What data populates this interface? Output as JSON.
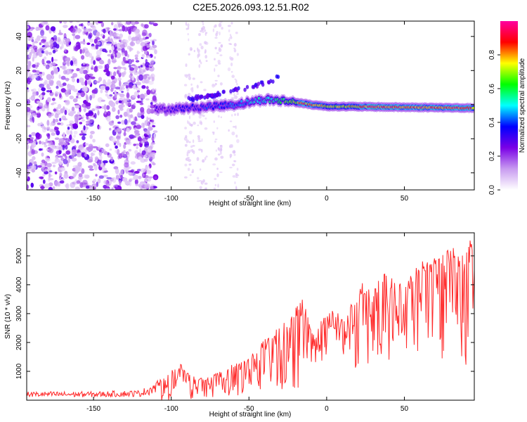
{
  "title": "C2E5.2026.093.12.51.R02",
  "chart_data": [
    {
      "type": "heatmap",
      "xlabel": "Height of straight line (km)",
      "ylabel": "Frequency (Hz)",
      "xlim": [
        -193,
        95
      ],
      "ylim": [
        -50,
        49
      ],
      "xticks": [
        -150,
        -100,
        -50,
        0,
        50
      ],
      "yticks": [
        -40,
        -20,
        0,
        20,
        40
      ],
      "colorbar": {
        "label": "Normalized spectral amplitude",
        "range": [
          0,
          1
        ],
        "ticks": [
          "0.0",
          "0.2",
          "0.4",
          "0.6",
          "0.8"
        ],
        "colors": [
          "#ffffff",
          "#c89bf0",
          "#7a00e6",
          "#0000ff",
          "#00ffff",
          "#00ff00",
          "#ffff00",
          "#ff0000",
          "#ff00a0"
        ]
      },
      "features": [
        {
          "name": "noise region",
          "x_range": [
            -193,
            -110
          ],
          "freq_range": [
            -50,
            49
          ],
          "amplitude": 0.12
        },
        {
          "name": "faint noise bands",
          "x_range": [
            -110,
            -50
          ],
          "freq_range": [
            -50,
            49
          ],
          "amplitude": 0.05
        },
        {
          "name": "carrier line",
          "x_range": [
            -110,
            95
          ],
          "center_freq": [
            {
              "x": -110,
              "f": -3
            },
            {
              "x": -90,
              "f": -2
            },
            {
              "x": -60,
              "f": 0
            },
            {
              "x": -40,
              "f": 3
            },
            {
              "x": -25,
              "f": 2
            },
            {
              "x": -10,
              "f": 0
            },
            {
              "x": 0,
              "f": -1
            },
            {
              "x": 95,
              "f": -2
            }
          ],
          "amplitude_profile": [
            {
              "x": -110,
              "a": 0.3
            },
            {
              "x": -60,
              "a": 0.45
            },
            {
              "x": -30,
              "a": 0.6
            },
            {
              "x": -15,
              "a": 0.9
            },
            {
              "x": 10,
              "a": 0.75
            },
            {
              "x": 30,
              "a": 0.95
            },
            {
              "x": 95,
              "a": 0.9
            }
          ]
        },
        {
          "name": "sideband streak",
          "points": [
            {
              "x": -90,
              "f": 3
            },
            {
              "x": -70,
              "f": 6
            },
            {
              "x": -50,
              "f": 10
            },
            {
              "x": -35,
              "f": 14
            },
            {
              "x": -28,
              "f": 20
            }
          ]
        }
      ]
    },
    {
      "type": "line",
      "xlabel": "Height of straight line (km)",
      "ylabel": "SNR (10 * v/v)",
      "xlim": [
        -193,
        95
      ],
      "ylim": [
        0,
        5800
      ],
      "xticks": [
        -150,
        -100,
        -50,
        0,
        50
      ],
      "yticks": [
        1000,
        2000,
        3000,
        4000,
        5000
      ],
      "series": [
        {
          "name": "SNR",
          "color": "#ff2a2a",
          "envelope": [
            {
              "x": -193,
              "lo": 0,
              "hi": 300
            },
            {
              "x": -150,
              "lo": 0,
              "hi": 300
            },
            {
              "x": -120,
              "lo": 0,
              "hi": 350
            },
            {
              "x": -105,
              "lo": 0,
              "hi": 800
            },
            {
              "x": -95,
              "lo": 0,
              "hi": 1300
            },
            {
              "x": -85,
              "lo": 0,
              "hi": 800
            },
            {
              "x": -75,
              "lo": 0,
              "hi": 800
            },
            {
              "x": -60,
              "lo": 50,
              "hi": 1300
            },
            {
              "x": -50,
              "lo": 100,
              "hi": 1500
            },
            {
              "x": -40,
              "lo": 200,
              "hi": 2100
            },
            {
              "x": -25,
              "lo": 300,
              "hi": 2800
            },
            {
              "x": -15,
              "lo": 400,
              "hi": 3600
            },
            {
              "x": -10,
              "lo": 900,
              "hi": 2400
            },
            {
              "x": 0,
              "lo": 1500,
              "hi": 3000
            },
            {
              "x": 5,
              "lo": 2000,
              "hi": 3200
            },
            {
              "x": 12,
              "lo": 1500,
              "hi": 2700
            },
            {
              "x": 20,
              "lo": 1000,
              "hi": 4000
            },
            {
              "x": 30,
              "lo": 1200,
              "hi": 4300
            },
            {
              "x": 40,
              "lo": 1400,
              "hi": 4400
            },
            {
              "x": 50,
              "lo": 1800,
              "hi": 4000
            },
            {
              "x": 60,
              "lo": 1600,
              "hi": 4800
            },
            {
              "x": 70,
              "lo": 1400,
              "hi": 5000
            },
            {
              "x": 80,
              "lo": 1200,
              "hi": 5300
            },
            {
              "x": 90,
              "lo": 1000,
              "hi": 5400
            },
            {
              "x": 95,
              "lo": 1300,
              "hi": 5700
            }
          ]
        }
      ]
    }
  ]
}
